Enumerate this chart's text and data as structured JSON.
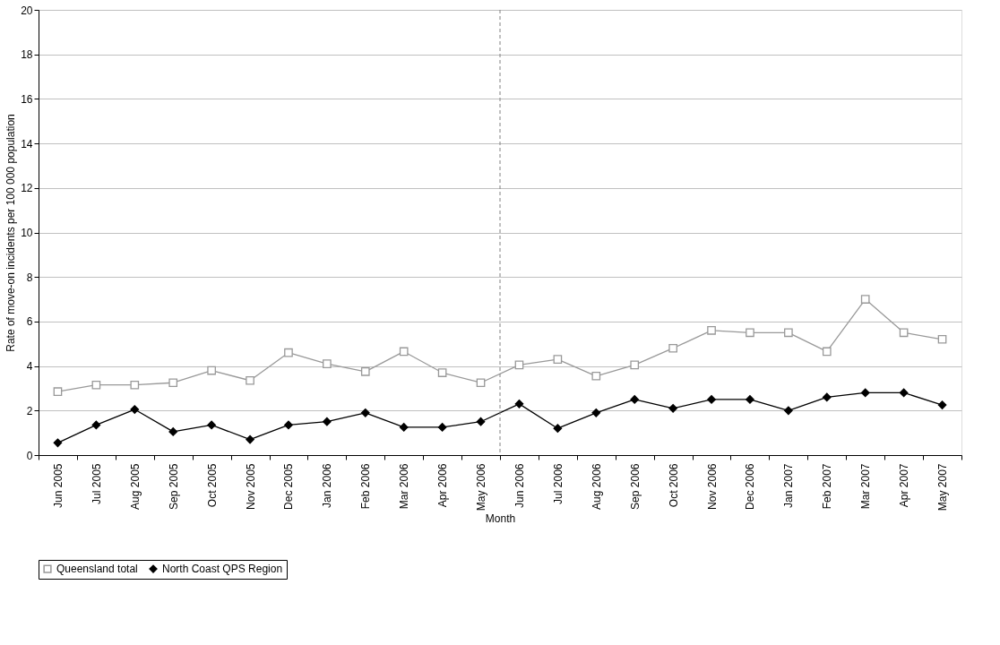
{
  "chart_data": {
    "type": "line",
    "xlabel": "Month",
    "ylabel": "Rate of move-on incidents per 100 000 population",
    "categories": [
      "Jun 2005",
      "Jul 2005",
      "Aug 2005",
      "Sep 2005",
      "Oct 2005",
      "Nov 2005",
      "Dec 2005",
      "Jan 2006",
      "Feb 2006",
      "Mar 2006",
      "Apr 2006",
      "May 2006",
      "Jun 2006",
      "Jul 2006",
      "Aug 2006",
      "Sep 2006",
      "Oct 2006",
      "Nov 2006",
      "Dec 2006",
      "Jan 2007",
      "Feb 2007",
      "Mar 2007",
      "Apr 2007",
      "May 2007"
    ],
    "series": [
      {
        "name": "Queensland total",
        "color": "#999999",
        "marker": "square",
        "values": [
          2.85,
          3.15,
          3.15,
          3.25,
          3.8,
          3.35,
          4.6,
          4.1,
          3.75,
          4.65,
          3.7,
          3.25,
          4.05,
          4.3,
          3.55,
          4.05,
          4.8,
          5.6,
          5.5,
          5.5,
          4.65,
          7.0,
          5.5,
          5.2
        ]
      },
      {
        "name": "North Coast QPS Region",
        "color": "#000000",
        "marker": "diamond",
        "values": [
          0.55,
          1.35,
          2.05,
          1.05,
          1.35,
          0.7,
          1.35,
          1.5,
          1.9,
          1.25,
          1.25,
          1.5,
          2.3,
          1.2,
          1.9,
          2.5,
          2.1,
          2.5,
          2.5,
          2.0,
          2.6,
          2.8,
          2.8,
          2.25
        ]
      }
    ],
    "ylim": [
      0,
      20
    ],
    "yticks": [
      0,
      2,
      4,
      6,
      8,
      10,
      12,
      14,
      16,
      18,
      20
    ],
    "grid": "y",
    "legend": "bottom",
    "line_style": "solid",
    "ref_lines": [
      {
        "axis": "x",
        "value": "Jun 2006",
        "color": "#808080",
        "line_style": "dashed"
      }
    ]
  }
}
